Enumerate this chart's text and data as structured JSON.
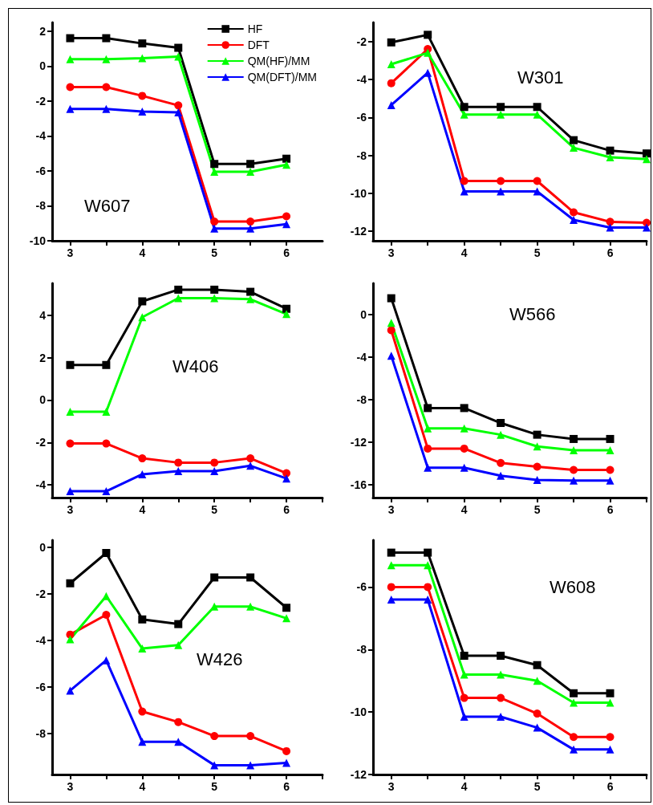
{
  "chart_data": [
    {
      "type": "line",
      "title": "W607",
      "x": [
        3,
        3.5,
        4,
        4.5,
        5,
        5.5,
        6
      ],
      "xlim": [
        2.75,
        6.5
      ],
      "xticks": [
        3,
        {
          "value": 3.5,
          "label": null
        },
        4,
        {
          "value": 4.5,
          "label": null
        },
        5,
        {
          "value": 5.5,
          "label": null
        },
        6
      ],
      "ylim": [
        -10,
        2.5
      ],
      "yticks": [
        -10,
        -8,
        -6,
        -4,
        -2,
        0,
        2
      ],
      "legend": "top right",
      "grid": false,
      "series": [
        {
          "name": "HF",
          "color": "#000000",
          "marker": "square",
          "values": [
            1.6,
            1.6,
            1.3,
            1.05,
            -5.6,
            -5.6,
            -5.3
          ]
        },
        {
          "name": "DFT",
          "color": "#ff0000",
          "marker": "circle",
          "values": [
            -1.2,
            -1.2,
            -1.7,
            -2.25,
            -8.9,
            -8.9,
            -8.6
          ]
        },
        {
          "name": "QM(HF)/MM",
          "color": "#00ff00",
          "marker": "triangle",
          "values": [
            0.4,
            0.4,
            0.45,
            0.55,
            -6.05,
            -6.05,
            -5.65
          ]
        },
        {
          "name": "QM(DFT)/MM",
          "color": "#0000ff",
          "marker": "triangle",
          "values": [
            -2.45,
            -2.45,
            -2.6,
            -2.65,
            -9.3,
            -9.3,
            -9.05
          ]
        }
      ]
    },
    {
      "type": "line",
      "title": "W301",
      "x": [
        3,
        3.5,
        4,
        4.5,
        5,
        5.5,
        6,
        6.5
      ],
      "xlim": [
        2.75,
        6.5
      ],
      "xticks": [
        3,
        {
          "value": 3.5,
          "label": null
        },
        4,
        {
          "value": 4.5,
          "label": null
        },
        5,
        {
          "value": 5.5,
          "label": null
        },
        6,
        {
          "value": 6.5,
          "label": null
        }
      ],
      "ylim": [
        -12.5,
        -1
      ],
      "yticks": [
        -12,
        -10,
        -8,
        -6,
        -4,
        -2
      ],
      "grid": false,
      "series": [
        {
          "color": "#000000",
          "marker": "square",
          "values": [
            -2.05,
            -1.65,
            -5.45,
            -5.45,
            -5.45,
            -7.2,
            -7.75,
            -7.9
          ]
        },
        {
          "color": "#ff0000",
          "marker": "circle",
          "values": [
            -4.2,
            -2.4,
            -9.35,
            -9.35,
            -9.35,
            -11.0,
            -11.5,
            -11.55
          ]
        },
        {
          "color": "#00ff00",
          "marker": "triangle",
          "values": [
            -3.2,
            -2.6,
            -5.85,
            -5.85,
            -5.85,
            -7.6,
            -8.1,
            -8.2
          ]
        },
        {
          "color": "#0000ff",
          "marker": "triangle",
          "values": [
            -5.35,
            -3.65,
            -9.9,
            -9.9,
            -9.9,
            -11.4,
            -11.8,
            -11.8
          ]
        }
      ]
    },
    {
      "type": "line",
      "title": "W406",
      "x": [
        3,
        3.5,
        4,
        4.5,
        5,
        5.5,
        6
      ],
      "xlim": [
        2.75,
        6.5
      ],
      "xticks": [
        3,
        {
          "value": 3.5,
          "label": null
        },
        4,
        {
          "value": 4.5,
          "label": null
        },
        5,
        {
          "value": 5.5,
          "label": null
        },
        6,
        {
          "value": 6.5,
          "label": null
        }
      ],
      "ylim": [
        -4.6,
        5.5
      ],
      "yticks": [
        -4,
        -2,
        0,
        2,
        4
      ],
      "grid": false,
      "series": [
        {
          "color": "#000000",
          "marker": "square",
          "values": [
            1.65,
            1.65,
            4.65,
            5.2,
            5.2,
            5.1,
            4.3
          ]
        },
        {
          "color": "#ff0000",
          "marker": "circle",
          "values": [
            -2.05,
            -2.05,
            -2.75,
            -2.95,
            -2.95,
            -2.75,
            -3.45
          ]
        },
        {
          "color": "#00ff00",
          "marker": "triangle",
          "values": [
            -0.55,
            -0.55,
            3.9,
            4.8,
            4.8,
            4.75,
            4.05
          ]
        },
        {
          "color": "#0000ff",
          "marker": "triangle",
          "values": [
            -4.3,
            -4.3,
            -3.5,
            -3.35,
            -3.35,
            -3.1,
            -3.7
          ]
        }
      ]
    },
    {
      "type": "line",
      "title": "W566",
      "x": [
        3,
        3.5,
        4,
        4.5,
        5,
        5.5,
        6
      ],
      "xlim": [
        2.75,
        6.5
      ],
      "xticks": [
        3,
        {
          "value": 3.5,
          "label": null
        },
        4,
        {
          "value": 4.5,
          "label": null
        },
        5,
        {
          "value": 5.5,
          "label": null
        },
        6,
        {
          "value": 6.5,
          "label": null
        }
      ],
      "ylim": [
        -17.2,
        2.9
      ],
      "yticks": [
        -16,
        -12,
        -8,
        -4,
        0
      ],
      "grid": false,
      "series": [
        {
          "color": "#000000",
          "marker": "square",
          "values": [
            1.5,
            -8.8,
            -8.8,
            -10.2,
            -11.3,
            -11.7,
            -11.7
          ]
        },
        {
          "color": "#ff0000",
          "marker": "circle",
          "values": [
            -1.5,
            -12.6,
            -12.6,
            -13.95,
            -14.3,
            -14.6,
            -14.6
          ]
        },
        {
          "color": "#00ff00",
          "marker": "triangle",
          "values": [
            -0.8,
            -10.7,
            -10.7,
            -11.3,
            -12.4,
            -12.75,
            -12.75
          ]
        },
        {
          "color": "#0000ff",
          "marker": "triangle",
          "values": [
            -3.9,
            -14.4,
            -14.4,
            -15.15,
            -15.55,
            -15.6,
            -15.6
          ]
        }
      ]
    },
    {
      "type": "line",
      "title": "W426",
      "x": [
        3,
        3.5,
        4,
        4.5,
        5,
        5.5,
        6
      ],
      "xlim": [
        2.75,
        6.5
      ],
      "xticks": [
        3,
        {
          "value": 3.5,
          "label": null
        },
        4,
        {
          "value": 4.5,
          "label": null
        },
        5,
        {
          "value": 5.5,
          "label": null
        },
        6,
        {
          "value": 6.5,
          "label": null
        }
      ],
      "ylim": [
        -9.75,
        0.3
      ],
      "yticks": [
        -8,
        -6,
        -4,
        -2,
        0
      ],
      "grid": false,
      "series": [
        {
          "color": "#000000",
          "marker": "square",
          "values": [
            -1.55,
            -0.25,
            -3.1,
            -3.3,
            -1.3,
            -1.3,
            -2.6
          ]
        },
        {
          "color": "#ff0000",
          "marker": "circle",
          "values": [
            -3.75,
            -2.9,
            -7.05,
            -7.5,
            -8.1,
            -8.1,
            -8.75
          ]
        },
        {
          "color": "#00ff00",
          "marker": "triangle",
          "values": [
            -3.95,
            -2.1,
            -4.35,
            -4.2,
            -2.55,
            -2.55,
            -3.05
          ]
        },
        {
          "color": "#0000ff",
          "marker": "triangle",
          "values": [
            -6.15,
            -4.85,
            -8.35,
            -8.35,
            -9.35,
            -9.35,
            -9.25
          ]
        }
      ]
    },
    {
      "type": "line",
      "title": "W608",
      "x": [
        3,
        3.5,
        4,
        4.5,
        5,
        5.5,
        6
      ],
      "xlim": [
        2.75,
        6.5
      ],
      "xticks": [
        3,
        {
          "value": 3.5,
          "label": null
        },
        4,
        {
          "value": 4.5,
          "label": null
        },
        5,
        {
          "value": 5.5,
          "label": null
        },
        6,
        {
          "value": 6.5,
          "label": null
        }
      ],
      "ylim": [
        -12,
        -4.5
      ],
      "yticks": [
        -12,
        -10,
        -8,
        -6
      ],
      "grid": false,
      "series": [
        {
          "color": "#000000",
          "marker": "square",
          "values": [
            -4.9,
            -4.9,
            -8.2,
            -8.2,
            -8.5,
            -9.4,
            -9.4
          ]
        },
        {
          "color": "#ff0000",
          "marker": "circle",
          "values": [
            -6.0,
            -6.0,
            -9.55,
            -9.55,
            -10.05,
            -10.8,
            -10.8
          ]
        },
        {
          "color": "#00ff00",
          "marker": "triangle",
          "values": [
            -5.3,
            -5.3,
            -8.8,
            -8.8,
            -9.0,
            -9.7,
            -9.7
          ]
        },
        {
          "color": "#0000ff",
          "marker": "triangle",
          "values": [
            -6.4,
            -6.4,
            -10.15,
            -10.15,
            -10.5,
            -11.2,
            -11.2
          ]
        }
      ]
    }
  ]
}
